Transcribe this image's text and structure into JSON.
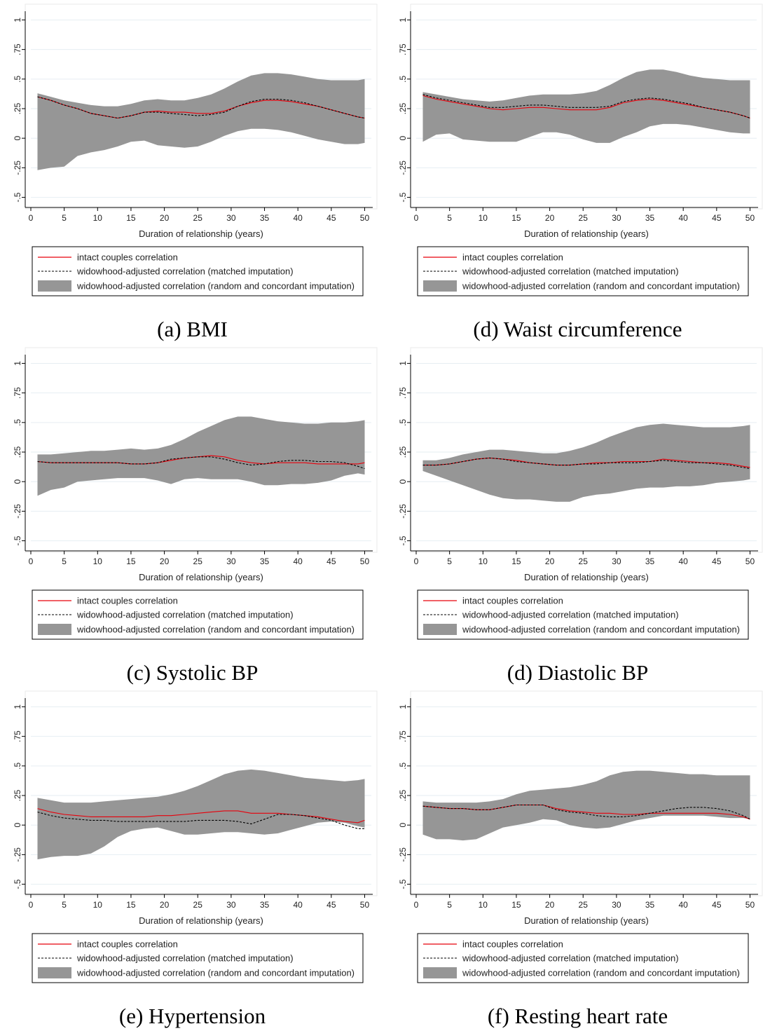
{
  "colors": {
    "intact": "#e8000b",
    "matched": "#000000",
    "band": "#969696",
    "grid": "#e6eef2"
  },
  "common": {
    "xlabel": "Duration of relationship (years)",
    "xticks": [
      0,
      5,
      10,
      15,
      20,
      25,
      30,
      35,
      40,
      45,
      50
    ],
    "yticks": [
      -0.5,
      -0.25,
      0,
      0.25,
      0.5,
      0.75,
      1
    ],
    "ytick_labels": [
      "-.5",
      "-.25",
      "0",
      ".25",
      ".5",
      ".75",
      "1"
    ],
    "xlim": [
      0,
      51
    ],
    "ylim": [
      -0.55,
      1.05
    ],
    "legend": [
      "intact couples correlation",
      "widowhood-adjusted correlation (matched imputation)",
      "widowhood-adjusted correlation (random and concordant imputation)"
    ]
  },
  "chart_data": [
    {
      "type": "line",
      "caption": "(a) BMI",
      "x": [
        1,
        3,
        5,
        7,
        9,
        11,
        13,
        15,
        17,
        19,
        21,
        23,
        25,
        27,
        29,
        31,
        33,
        35,
        37,
        39,
        41,
        43,
        45,
        47,
        49,
        50
      ],
      "series": [
        {
          "name": "intact couples correlation",
          "values": [
            0.35,
            0.32,
            0.28,
            0.25,
            0.21,
            0.19,
            0.17,
            0.19,
            0.22,
            0.23,
            0.22,
            0.22,
            0.21,
            0.21,
            0.23,
            0.27,
            0.3,
            0.32,
            0.32,
            0.31,
            0.29,
            0.27,
            0.24,
            0.21,
            0.18,
            0.17
          ]
        },
        {
          "name": "widowhood-adjusted correlation (matched imputation)",
          "values": [
            0.35,
            0.32,
            0.28,
            0.25,
            0.21,
            0.19,
            0.17,
            0.19,
            0.22,
            0.22,
            0.21,
            0.2,
            0.19,
            0.2,
            0.22,
            0.27,
            0.31,
            0.33,
            0.33,
            0.32,
            0.3,
            0.27,
            0.24,
            0.21,
            0.18,
            0.17
          ]
        }
      ],
      "band": {
        "upper": [
          0.38,
          0.35,
          0.32,
          0.3,
          0.28,
          0.27,
          0.27,
          0.29,
          0.32,
          0.33,
          0.32,
          0.32,
          0.34,
          0.37,
          0.42,
          0.48,
          0.53,
          0.55,
          0.55,
          0.54,
          0.52,
          0.5,
          0.49,
          0.49,
          0.49,
          0.5
        ],
        "lower": [
          -0.27,
          -0.25,
          -0.24,
          -0.15,
          -0.12,
          -0.1,
          -0.07,
          -0.03,
          -0.02,
          -0.06,
          -0.07,
          -0.08,
          -0.07,
          -0.03,
          0.02,
          0.06,
          0.08,
          0.08,
          0.07,
          0.05,
          0.02,
          -0.01,
          -0.03,
          -0.05,
          -0.05,
          -0.04
        ]
      }
    },
    {
      "type": "line",
      "caption": "(d) Waist circumference",
      "x": [
        1,
        3,
        5,
        7,
        9,
        11,
        13,
        15,
        17,
        19,
        21,
        23,
        25,
        27,
        29,
        31,
        33,
        35,
        37,
        39,
        41,
        43,
        45,
        47,
        49,
        50
      ],
      "series": [
        {
          "name": "intact couples correlation",
          "values": [
            0.36,
            0.33,
            0.31,
            0.29,
            0.27,
            0.25,
            0.24,
            0.25,
            0.26,
            0.26,
            0.25,
            0.24,
            0.24,
            0.24,
            0.26,
            0.3,
            0.32,
            0.33,
            0.32,
            0.3,
            0.28,
            0.26,
            0.24,
            0.22,
            0.19,
            0.17
          ]
        },
        {
          "name": "widowhood-adjusted correlation (matched imputation)",
          "values": [
            0.37,
            0.34,
            0.32,
            0.3,
            0.28,
            0.26,
            0.26,
            0.27,
            0.28,
            0.28,
            0.27,
            0.26,
            0.26,
            0.26,
            0.27,
            0.31,
            0.33,
            0.34,
            0.33,
            0.31,
            0.29,
            0.26,
            0.24,
            0.22,
            0.19,
            0.17
          ]
        }
      ],
      "band": {
        "upper": [
          0.39,
          0.37,
          0.35,
          0.33,
          0.32,
          0.31,
          0.32,
          0.34,
          0.36,
          0.37,
          0.37,
          0.37,
          0.38,
          0.4,
          0.45,
          0.51,
          0.56,
          0.58,
          0.58,
          0.56,
          0.53,
          0.51,
          0.5,
          0.49,
          0.49,
          0.49
        ],
        "lower": [
          -0.03,
          0.03,
          0.04,
          -0.01,
          -0.02,
          -0.03,
          -0.03,
          -0.03,
          0.01,
          0.05,
          0.05,
          0.03,
          -0.01,
          -0.04,
          -0.04,
          0.01,
          0.05,
          0.1,
          0.12,
          0.12,
          0.11,
          0.09,
          0.07,
          0.05,
          0.04,
          0.04
        ]
      }
    },
    {
      "type": "line",
      "caption": "(c) Systolic BP",
      "x": [
        1,
        3,
        5,
        7,
        9,
        11,
        13,
        15,
        17,
        19,
        21,
        23,
        25,
        27,
        29,
        31,
        33,
        35,
        37,
        39,
        41,
        43,
        45,
        47,
        49,
        50
      ],
      "series": [
        {
          "name": "intact couples correlation",
          "values": [
            0.17,
            0.16,
            0.16,
            0.16,
            0.16,
            0.16,
            0.16,
            0.15,
            0.15,
            0.16,
            0.18,
            0.2,
            0.21,
            0.22,
            0.21,
            0.18,
            0.16,
            0.15,
            0.16,
            0.16,
            0.16,
            0.15,
            0.15,
            0.15,
            0.15,
            0.16
          ]
        },
        {
          "name": "widowhood-adjusted correlation (matched imputation)",
          "values": [
            0.17,
            0.16,
            0.16,
            0.16,
            0.16,
            0.16,
            0.16,
            0.15,
            0.15,
            0.16,
            0.19,
            0.2,
            0.21,
            0.21,
            0.19,
            0.16,
            0.14,
            0.15,
            0.17,
            0.18,
            0.18,
            0.17,
            0.17,
            0.16,
            0.13,
            0.11
          ]
        }
      ],
      "band": {
        "upper": [
          0.23,
          0.23,
          0.24,
          0.25,
          0.26,
          0.26,
          0.27,
          0.28,
          0.27,
          0.28,
          0.31,
          0.36,
          0.42,
          0.47,
          0.52,
          0.55,
          0.55,
          0.53,
          0.51,
          0.5,
          0.49,
          0.49,
          0.5,
          0.5,
          0.51,
          0.52
        ],
        "lower": [
          -0.12,
          -0.07,
          -0.05,
          0.0,
          0.01,
          0.02,
          0.03,
          0.03,
          0.03,
          0.01,
          -0.02,
          0.02,
          0.03,
          0.02,
          0.02,
          0.02,
          0.0,
          -0.03,
          -0.03,
          -0.02,
          -0.02,
          -0.01,
          0.01,
          0.05,
          0.07,
          0.06
        ]
      }
    },
    {
      "type": "line",
      "caption": "(d) Diastolic BP",
      "x": [
        1,
        3,
        5,
        7,
        9,
        11,
        13,
        15,
        17,
        19,
        21,
        23,
        25,
        27,
        29,
        31,
        33,
        35,
        37,
        39,
        41,
        43,
        45,
        47,
        49,
        50
      ],
      "series": [
        {
          "name": "intact couples correlation",
          "values": [
            0.14,
            0.14,
            0.15,
            0.17,
            0.19,
            0.2,
            0.19,
            0.18,
            0.16,
            0.15,
            0.14,
            0.14,
            0.15,
            0.16,
            0.16,
            0.17,
            0.17,
            0.17,
            0.19,
            0.18,
            0.17,
            0.16,
            0.16,
            0.15,
            0.13,
            0.12
          ]
        },
        {
          "name": "widowhood-adjusted correlation (matched imputation)",
          "values": [
            0.14,
            0.14,
            0.15,
            0.17,
            0.19,
            0.2,
            0.19,
            0.17,
            0.16,
            0.15,
            0.14,
            0.14,
            0.15,
            0.15,
            0.16,
            0.16,
            0.16,
            0.17,
            0.18,
            0.17,
            0.16,
            0.16,
            0.15,
            0.14,
            0.12,
            0.11
          ]
        }
      ],
      "band": {
        "upper": [
          0.18,
          0.18,
          0.2,
          0.23,
          0.25,
          0.27,
          0.27,
          0.26,
          0.25,
          0.24,
          0.24,
          0.26,
          0.29,
          0.33,
          0.38,
          0.42,
          0.46,
          0.48,
          0.49,
          0.48,
          0.47,
          0.46,
          0.46,
          0.46,
          0.47,
          0.48
        ],
        "lower": [
          0.09,
          0.05,
          0.01,
          -0.03,
          -0.07,
          -0.11,
          -0.14,
          -0.15,
          -0.15,
          -0.16,
          -0.17,
          -0.17,
          -0.13,
          -0.11,
          -0.1,
          -0.08,
          -0.06,
          -0.05,
          -0.05,
          -0.04,
          -0.04,
          -0.03,
          -0.01,
          0.0,
          0.01,
          0.02
        ]
      }
    },
    {
      "type": "line",
      "caption": "(e) Hypertension",
      "x": [
        1,
        3,
        5,
        7,
        9,
        11,
        13,
        15,
        17,
        19,
        21,
        23,
        25,
        27,
        29,
        31,
        33,
        35,
        37,
        39,
        41,
        43,
        45,
        47,
        49,
        50
      ],
      "series": [
        {
          "name": "intact couples correlation",
          "values": [
            0.14,
            0.11,
            0.09,
            0.08,
            0.07,
            0.07,
            0.07,
            0.07,
            0.07,
            0.08,
            0.08,
            0.09,
            0.1,
            0.11,
            0.12,
            0.12,
            0.1,
            0.1,
            0.1,
            0.09,
            0.08,
            0.07,
            0.05,
            0.03,
            0.02,
            0.04
          ]
        },
        {
          "name": "widowhood-adjusted correlation (matched imputation)",
          "values": [
            0.11,
            0.08,
            0.06,
            0.05,
            0.04,
            0.04,
            0.03,
            0.03,
            0.03,
            0.03,
            0.03,
            0.03,
            0.04,
            0.04,
            0.04,
            0.03,
            0.01,
            0.05,
            0.09,
            0.09,
            0.08,
            0.06,
            0.04,
            0.0,
            -0.03,
            -0.03
          ]
        }
      ],
      "band": {
        "upper": [
          0.23,
          0.21,
          0.19,
          0.19,
          0.19,
          0.2,
          0.21,
          0.22,
          0.23,
          0.24,
          0.26,
          0.29,
          0.33,
          0.38,
          0.43,
          0.46,
          0.47,
          0.46,
          0.44,
          0.42,
          0.4,
          0.39,
          0.38,
          0.37,
          0.38,
          0.39
        ],
        "lower": [
          -0.29,
          -0.27,
          -0.26,
          -0.26,
          -0.24,
          -0.18,
          -0.1,
          -0.05,
          -0.03,
          -0.02,
          -0.05,
          -0.08,
          -0.08,
          -0.07,
          -0.06,
          -0.06,
          -0.07,
          -0.08,
          -0.07,
          -0.04,
          -0.01,
          0.02,
          0.03,
          0.02,
          -0.01,
          -0.02
        ]
      }
    },
    {
      "type": "line",
      "caption": "(f) Resting heart rate",
      "x": [
        1,
        3,
        5,
        7,
        9,
        11,
        13,
        15,
        17,
        19,
        21,
        23,
        25,
        27,
        29,
        31,
        33,
        35,
        37,
        39,
        41,
        43,
        45,
        47,
        49,
        50
      ],
      "series": [
        {
          "name": "intact couples correlation",
          "values": [
            0.16,
            0.15,
            0.14,
            0.14,
            0.13,
            0.13,
            0.15,
            0.17,
            0.17,
            0.17,
            0.14,
            0.12,
            0.11,
            0.1,
            0.1,
            0.09,
            0.09,
            0.1,
            0.1,
            0.1,
            0.1,
            0.1,
            0.1,
            0.09,
            0.07,
            0.05
          ]
        },
        {
          "name": "widowhood-adjusted correlation (matched imputation)",
          "values": [
            0.16,
            0.15,
            0.14,
            0.14,
            0.13,
            0.13,
            0.15,
            0.17,
            0.17,
            0.17,
            0.13,
            0.11,
            0.1,
            0.08,
            0.07,
            0.07,
            0.08,
            0.1,
            0.12,
            0.14,
            0.15,
            0.15,
            0.14,
            0.12,
            0.08,
            0.05
          ]
        }
      ],
      "band": {
        "upper": [
          0.2,
          0.19,
          0.19,
          0.19,
          0.19,
          0.2,
          0.22,
          0.26,
          0.29,
          0.3,
          0.31,
          0.32,
          0.34,
          0.37,
          0.42,
          0.45,
          0.46,
          0.46,
          0.45,
          0.44,
          0.43,
          0.43,
          0.42,
          0.42,
          0.42,
          0.42
        ],
        "lower": [
          -0.08,
          -0.12,
          -0.12,
          -0.13,
          -0.12,
          -0.07,
          -0.02,
          0.0,
          0.02,
          0.05,
          0.04,
          0.0,
          -0.02,
          -0.03,
          -0.02,
          0.01,
          0.04,
          0.06,
          0.08,
          0.08,
          0.08,
          0.08,
          0.07,
          0.06,
          0.06,
          0.05
        ]
      }
    }
  ]
}
